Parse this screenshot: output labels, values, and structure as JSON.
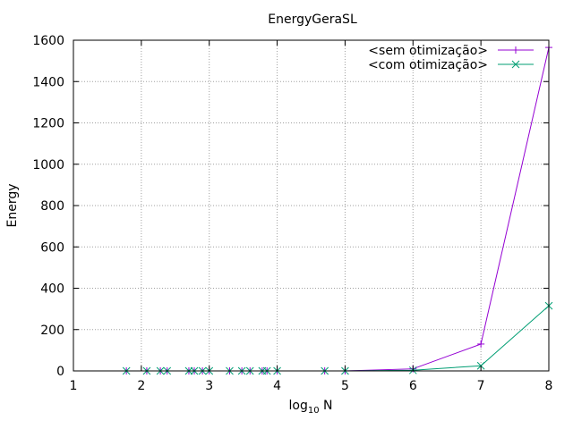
{
  "chart_data": {
    "type": "line",
    "title": "EnergyGeraSL",
    "xlabel_main": "log",
    "xlabel_sub": "10",
    "xlabel_tail": " N",
    "ylabel": "Energy",
    "xlim": [
      1,
      8
    ],
    "ylim": [
      0,
      1600
    ],
    "x_ticks": [
      "1",
      "2",
      "3",
      "4",
      "5",
      "6",
      "7",
      "8"
    ],
    "y_ticks": [
      "0",
      "200",
      "400",
      "600",
      "800",
      "1000",
      "1200",
      "1400",
      "1600"
    ],
    "grid": true,
    "legend_position": "top-right",
    "series": [
      {
        "name": "<sem otimização>",
        "color": "#9400d3",
        "marker": "plus",
        "x": [
          1.78,
          2.08,
          2.28,
          2.38,
          2.7,
          2.78,
          2.9,
          3.0,
          3.3,
          3.48,
          3.6,
          3.78,
          3.85,
          4.0,
          4.7,
          5.0,
          6.0,
          7.0,
          8.0
        ],
        "y": [
          0,
          0,
          0,
          0,
          0,
          0,
          0,
          0,
          0,
          0,
          0,
          0,
          0,
          0,
          0,
          0,
          10,
          130,
          1565
        ]
      },
      {
        "name": "<com otimização>",
        "color": "#009e73",
        "marker": "cross",
        "x": [
          1.78,
          2.08,
          2.28,
          2.38,
          2.7,
          2.78,
          2.9,
          3.0,
          3.3,
          3.48,
          3.6,
          3.78,
          3.85,
          4.0,
          4.7,
          5.0,
          6.0,
          7.0,
          8.0
        ],
        "y": [
          0,
          0,
          0,
          0,
          0,
          0,
          0,
          0,
          0,
          0,
          0,
          0,
          0,
          0,
          0,
          0,
          3,
          25,
          315
        ]
      }
    ]
  }
}
